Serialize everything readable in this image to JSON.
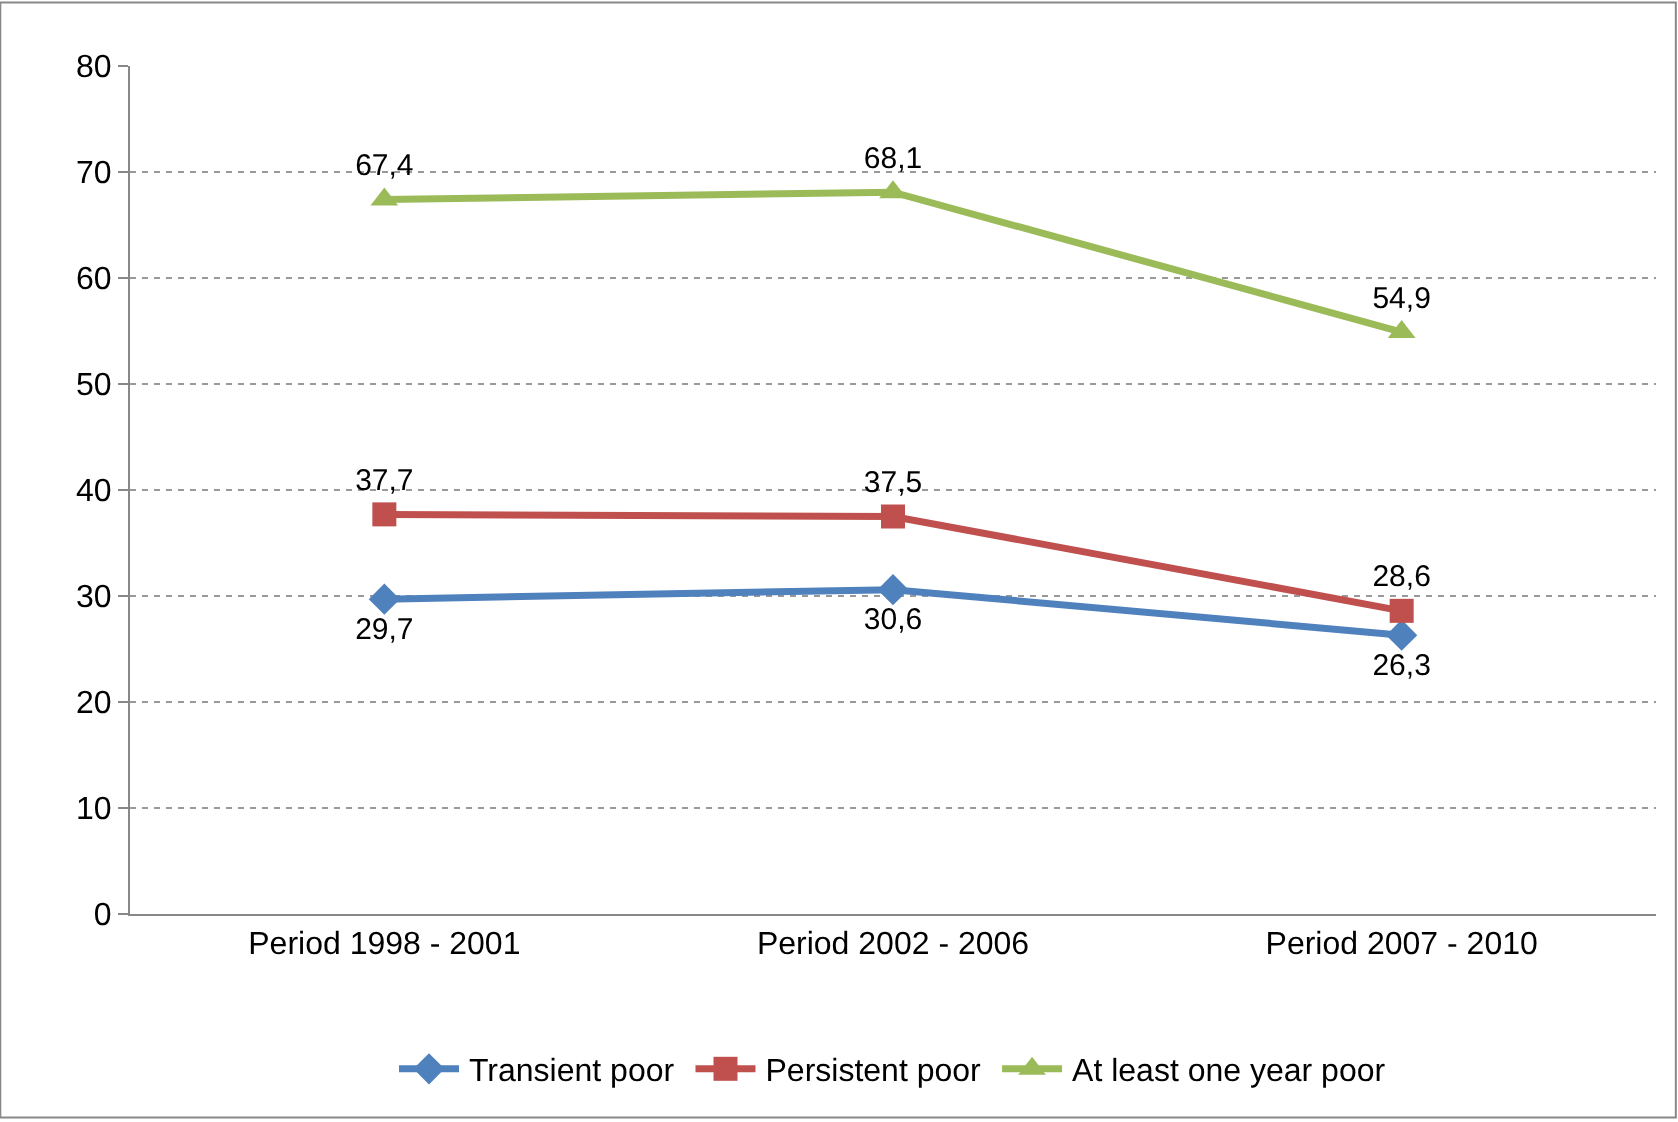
{
  "chart_data": {
    "type": "line",
    "categories": [
      "Period 1998 - 2001",
      "Period 2002 - 2006",
      "Period 2007 - 2010"
    ],
    "series": [
      {
        "name": "Transient poor",
        "color": "#4f81bd",
        "marker": "diamond",
        "values": [
          29.7,
          30.6,
          26.3
        ],
        "value_labels": [
          "29,7",
          "30,6",
          "26,3"
        ]
      },
      {
        "name": "Persistent poor",
        "color": "#c0504d",
        "marker": "square",
        "values": [
          37.7,
          37.5,
          28.6
        ],
        "value_labels": [
          "37,7",
          "37,5",
          "28,6"
        ]
      },
      {
        "name": "At least one year poor",
        "color": "#9bbb59",
        "marker": "triangle",
        "values": [
          67.4,
          68.1,
          54.9
        ],
        "value_labels": [
          "67,4",
          "68,1",
          "54,9"
        ]
      }
    ],
    "ylim": [
      0,
      80
    ],
    "yticks": [
      0,
      10,
      20,
      30,
      40,
      50,
      60,
      70,
      80
    ],
    "grid": "y",
    "legend": "bottom"
  }
}
